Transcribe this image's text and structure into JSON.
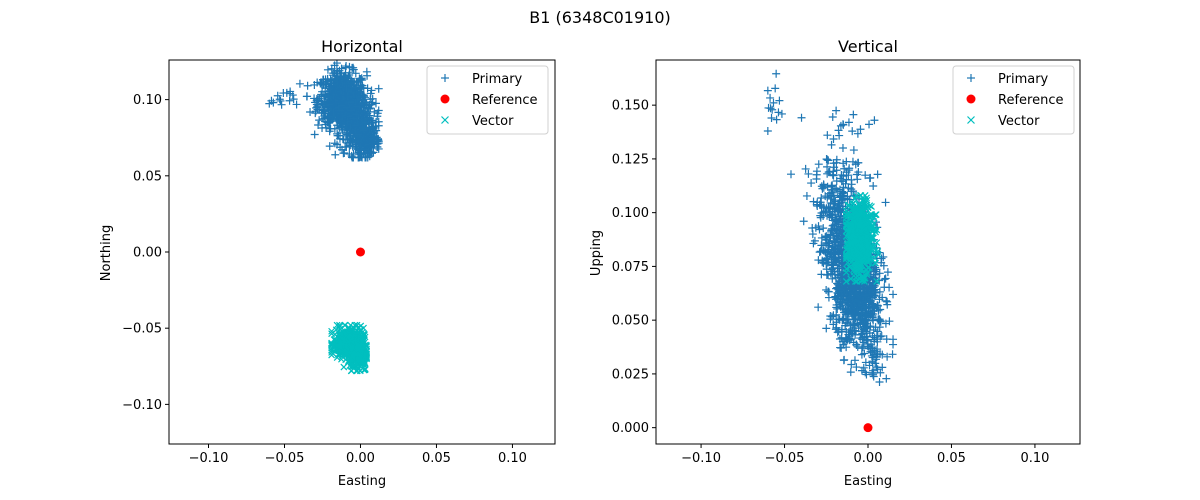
{
  "figure": {
    "title": "B1 (6348C01910)"
  },
  "colors": {
    "primary": "#1f77b4",
    "reference": "#ff0000",
    "vector": "#00bfbf",
    "axis": "#000000"
  },
  "chart_data": [
    {
      "type": "scatter",
      "title": "Horizontal",
      "xlabel": "Easting",
      "ylabel": "Northing",
      "xlim": [
        -0.126,
        0.128
      ],
      "ylim": [
        -0.126,
        0.126
      ],
      "xticks": [
        -0.1,
        -0.05,
        0.0,
        0.05,
        0.1
      ],
      "xtick_labels": [
        "−0.10",
        "−0.05",
        "0.00",
        "0.05",
        "0.10"
      ],
      "yticks": [
        -0.1,
        -0.05,
        0.0,
        0.05,
        0.1
      ],
      "ytick_labels": [
        "−0.10",
        "−0.05",
        "0.00",
        "0.05",
        "0.10"
      ],
      "grid": false,
      "legend": {
        "position": "top-right",
        "entries": [
          "Primary",
          "Reference",
          "Vector"
        ]
      },
      "series": [
        {
          "name": "Primary",
          "marker": "+",
          "clusters": [
            {
              "center": [
                -0.012,
                0.1
              ],
              "spread": [
                0.008,
                0.009
              ],
              "n": 700
            },
            {
              "center": [
                -0.002,
                0.082
              ],
              "spread": [
                0.006,
                0.009
              ],
              "n": 350
            },
            {
              "center": [
                0.004,
                0.073
              ],
              "spread": [
                0.004,
                0.005
              ],
              "n": 120
            },
            {
              "center": [
                -0.052,
                0.101
              ],
              "spread": [
                0.005,
                0.003
              ],
              "n": 15
            }
          ],
          "range_x": [
            -0.06,
            0.012
          ],
          "range_y": [
            0.062,
            0.124
          ]
        },
        {
          "name": "Reference",
          "marker": "o",
          "points": [
            [
              0.0,
              0.0
            ]
          ]
        },
        {
          "name": "Vector",
          "marker": "x",
          "clusters": [
            {
              "center": [
                -0.008,
                -0.06
              ],
              "spread": [
                0.005,
                0.005
              ],
              "n": 400
            },
            {
              "center": [
                -0.001,
                -0.068
              ],
              "spread": [
                0.003,
                0.005
              ],
              "n": 200
            }
          ],
          "range_x": [
            -0.019,
            0.004
          ],
          "range_y": [
            -0.078,
            -0.048
          ]
        }
      ]
    },
    {
      "type": "scatter",
      "title": "Vertical",
      "xlabel": "Easting",
      "ylabel": "Upping",
      "xlim": [
        -0.127,
        0.127
      ],
      "ylim": [
        -0.0076,
        0.171
      ],
      "xticks": [
        -0.1,
        -0.05,
        0.0,
        0.05,
        0.1
      ],
      "xtick_labels": [
        "−0.10",
        "−0.05",
        "0.00",
        "0.05",
        "0.10"
      ],
      "yticks": [
        0.0,
        0.025,
        0.05,
        0.075,
        0.1,
        0.125,
        0.15
      ],
      "ytick_labels": [
        "0.000",
        "0.025",
        "0.050",
        "0.075",
        "0.100",
        "0.125",
        "0.150"
      ],
      "grid": false,
      "legend": {
        "position": "top-right",
        "entries": [
          "Primary",
          "Reference",
          "Vector"
        ]
      },
      "series": [
        {
          "name": "Primary",
          "marker": "+",
          "clusters": [
            {
              "center": [
                -0.012,
                0.08
              ],
              "spread": [
                0.008,
                0.018
              ],
              "n": 900,
              "tilt": -0.35
            },
            {
              "center": [
                -0.005,
                0.055
              ],
              "spread": [
                0.007,
                0.01
              ],
              "n": 300
            },
            {
              "center": [
                0.004,
                0.035
              ],
              "spread": [
                0.004,
                0.006
              ],
              "n": 40
            },
            {
              "center": [
                -0.015,
                0.122
              ],
              "spread": [
                0.008,
                0.01
              ],
              "n": 60
            },
            {
              "center": [
                -0.055,
                0.15
              ],
              "spread": [
                0.004,
                0.007
              ],
              "n": 14
            }
          ],
          "range_x": [
            -0.06,
            0.015
          ],
          "range_y": [
            0.02,
            0.165
          ]
        },
        {
          "name": "Reference",
          "marker": "o",
          "points": [
            [
              0.0,
              0.0
            ]
          ]
        },
        {
          "name": "Vector",
          "marker": "x",
          "clusters": [
            {
              "center": [
                -0.005,
                0.088
              ],
              "spread": [
                0.004,
                0.008
              ],
              "n": 700
            }
          ],
          "range_x": [
            -0.013,
            0.006
          ],
          "range_y": [
            0.068,
            0.108
          ]
        }
      ]
    }
  ]
}
